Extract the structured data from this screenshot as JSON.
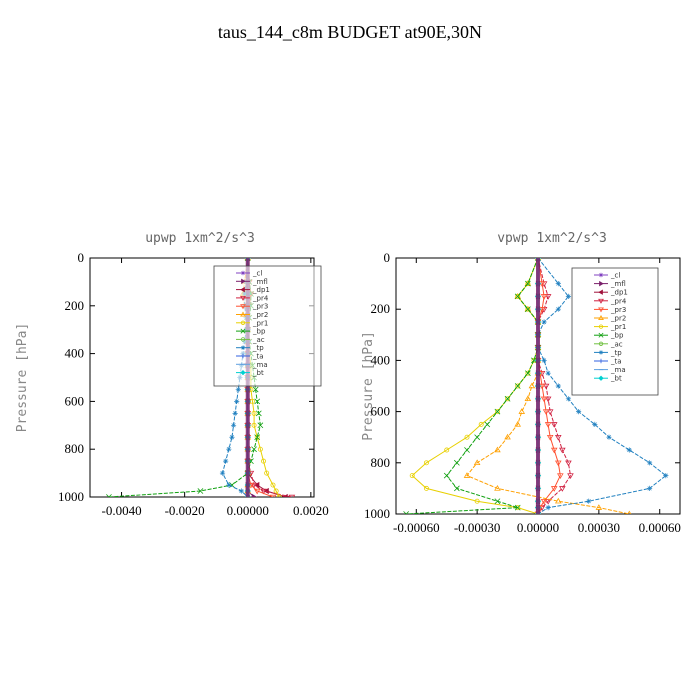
{
  "figure_title": "taus_144_c8m  BUDGET at90E,30N",
  "chart_data": [
    {
      "type": "line",
      "title": "upwp   1xm^2/s^3",
      "xlabel": "",
      "ylabel": "Pressure  [hPa]",
      "xlim": [
        -0.005,
        0.0021
      ],
      "ylim": [
        1000,
        0
      ],
      "xticks": [
        -0.004,
        -0.002,
        0.0,
        0.002
      ],
      "xtick_labels": [
        "-0.0040",
        "-0.0020",
        "0.00000",
        "0.0020"
      ],
      "yticks": [
        0,
        200,
        400,
        600,
        800,
        1000
      ],
      "ytick_labels": [
        "0",
        "200",
        "400",
        "600",
        "800",
        "1000"
      ],
      "legend_position": "top-right",
      "pressure": [
        0,
        100,
        150,
        200,
        250,
        300,
        350,
        400,
        450,
        500,
        550,
        600,
        650,
        700,
        750,
        800,
        850,
        900,
        950,
        975,
        1000
      ],
      "series": [
        {
          "name": "_cl",
          "color": "#8040c0",
          "values": [
            0,
            0,
            0,
            0,
            0,
            0,
            0,
            0,
            0,
            0,
            0,
            0,
            0,
            0,
            0,
            0,
            0,
            0,
            0,
            0,
            0
          ]
        },
        {
          "name": "_mfl",
          "color": "#7a1f6a",
          "values": [
            0,
            0,
            0,
            0,
            0,
            0,
            0,
            0,
            0,
            0,
            0,
            0,
            0,
            0,
            0,
            0,
            0,
            0,
            0,
            0,
            0.0002
          ]
        },
        {
          "name": "_dp1",
          "color": "#a0103a",
          "values": [
            0,
            0,
            0,
            0,
            0,
            0,
            0,
            0,
            0,
            0,
            0,
            0,
            0,
            0,
            0,
            0,
            0,
            0,
            0.0003,
            0.0006,
            0.0012
          ]
        },
        {
          "name": "_pr4",
          "color": "#d02040",
          "values": [
            0,
            5e-05,
            0.0001,
            5e-05,
            0,
            0,
            0,
            0,
            0,
            0,
            0,
            0,
            0,
            0,
            0,
            0,
            0,
            0.0001,
            0.0002,
            0.0005,
            0.0014
          ]
        },
        {
          "name": "_pr3",
          "color": "#ff5030",
          "values": [
            0,
            5e-05,
            0.0001,
            5e-05,
            0,
            0,
            0,
            0,
            0,
            0,
            0,
            0,
            0,
            0,
            0,
            0,
            0,
            0,
            0.0001,
            0.0003,
            0.0008
          ]
        },
        {
          "name": "_pr2",
          "color": "#ffa000",
          "values": [
            0,
            -0.0001,
            -0.00015,
            -0.0001,
            0,
            0,
            0,
            0,
            0,
            0,
            0,
            0,
            0,
            0,
            0,
            0,
            0,
            0,
            0,
            0,
            0
          ]
        },
        {
          "name": "_pr1",
          "color": "#e8d000",
          "values": [
            0,
            0,
            -0.0001,
            0,
            0,
            0,
            0,
            5e-05,
            0.0001,
            0.0001,
            0.0001,
            0.00015,
            0.0002,
            0.0002,
            0.0003,
            0.0004,
            0.0005,
            0.0006,
            0.0008,
            0.0009,
            0.001
          ]
        },
        {
          "name": "_bp",
          "color": "#10a010",
          "values": [
            0,
            5e-05,
            0.0001,
            0.0001,
            5e-05,
            0,
            5e-05,
            0.0001,
            0.00015,
            0.0002,
            0.00025,
            0.0003,
            0.00035,
            0.0004,
            0.0003,
            0.0002,
            0.0001,
            0,
            -0.0005,
            -0.0015,
            -0.0044
          ]
        },
        {
          "name": "_ac",
          "color": "#70c040",
          "values": [
            0,
            0,
            0,
            0,
            0,
            0,
            0,
            0,
            0,
            0,
            0,
            0,
            0,
            0,
            0,
            0,
            0,
            0,
            0,
            0,
            0
          ]
        },
        {
          "name": "_tp",
          "color": "#2080c0",
          "values": [
            0,
            -5e-05,
            -0.0001,
            -0.0001,
            -5e-05,
            -5e-05,
            -0.0001,
            -0.00015,
            -0.0002,
            -0.00025,
            -0.0003,
            -0.00035,
            -0.0004,
            -0.00045,
            -0.0005,
            -0.0006,
            -0.0007,
            -0.0008,
            -0.0006,
            -0.0002,
            0
          ]
        },
        {
          "name": "_ta",
          "color": "#3060e0",
          "values": [
            0,
            0,
            0,
            0,
            0,
            0,
            0,
            0,
            0,
            0,
            0,
            0,
            0,
            0,
            0,
            0,
            0,
            0,
            0,
            0,
            0
          ]
        },
        {
          "name": "_ma",
          "color": "#60a0e0",
          "values": [
            0,
            0,
            0,
            0,
            0,
            0,
            0,
            0,
            0,
            0,
            0,
            0,
            0,
            0,
            0,
            0,
            0,
            0,
            0,
            0,
            0
          ]
        },
        {
          "name": "_bt",
          "color": "#00d0d0",
          "values": [
            0,
            0,
            0,
            0,
            0,
            0,
            0,
            0,
            0,
            0,
            0,
            0,
            0,
            0,
            0,
            0,
            0,
            0,
            0,
            0,
            0
          ]
        }
      ]
    },
    {
      "type": "line",
      "title": "vpwp   1xm^2/s^3",
      "xlabel": "",
      "ylabel": "Pressure  [hPa]",
      "xlim": [
        -0.0007,
        0.0007
      ],
      "ylim": [
        1000,
        0
      ],
      "xticks": [
        -0.0006,
        -0.0003,
        0.0,
        0.0003,
        0.0006
      ],
      "xtick_labels": [
        "-0.00060",
        "-0.00030",
        "0.00000",
        "0.00030",
        "0.00060"
      ],
      "yticks": [
        0,
        200,
        400,
        600,
        800,
        1000
      ],
      "ytick_labels": [
        "0",
        "200",
        "400",
        "600",
        "800",
        "1000"
      ],
      "legend_position": "top-right",
      "pressure": [
        0,
        100,
        150,
        200,
        250,
        300,
        350,
        400,
        450,
        500,
        550,
        600,
        650,
        700,
        750,
        800,
        850,
        900,
        950,
        975,
        1000
      ],
      "series": [
        {
          "name": "_cl",
          "color": "#8040c0",
          "values": [
            0,
            0,
            0,
            0,
            0,
            0,
            0,
            0,
            0,
            0,
            0,
            0,
            0,
            0,
            0,
            0,
            0,
            0,
            0,
            0,
            0
          ]
        },
        {
          "name": "_mfl",
          "color": "#7a1f6a",
          "values": [
            0,
            0,
            0,
            0,
            0,
            0,
            0,
            0,
            0,
            0,
            0,
            0,
            0,
            0,
            0,
            0,
            0,
            0,
            0,
            0,
            0
          ]
        },
        {
          "name": "_dp1",
          "color": "#a0103a",
          "values": [
            0,
            0,
            0,
            0,
            0,
            0,
            0,
            0,
            0,
            0,
            0,
            0,
            0,
            0,
            0,
            0,
            0,
            0,
            0,
            0,
            0
          ]
        },
        {
          "name": "_pr4",
          "color": "#d02040",
          "values": [
            0,
            3e-05,
            5e-05,
            3e-05,
            0,
            0,
            0,
            0,
            2e-05,
            4e-05,
            5e-05,
            6e-05,
            8e-05,
            0.0001,
            0.00012,
            0.00015,
            0.00016,
            0.00012,
            5e-05,
            2e-05,
            0
          ]
        },
        {
          "name": "_pr3",
          "color": "#ff5030",
          "values": [
            0,
            2e-05,
            3e-05,
            2e-05,
            0,
            0,
            0,
            0,
            1e-05,
            2e-05,
            3e-05,
            4e-05,
            5e-05,
            6e-05,
            8e-05,
            0.0001,
            0.00011,
            8e-05,
            3e-05,
            1e-05,
            0
          ]
        },
        {
          "name": "_pr2",
          "color": "#ffa000",
          "values": [
            0,
            -5e-05,
            -0.0001,
            -5e-05,
            0,
            0,
            0,
            0,
            0,
            -3e-05,
            -5e-05,
            -8e-05,
            -0.0001,
            -0.00015,
            -0.0002,
            -0.0003,
            -0.00035,
            -0.0002,
            0.0001,
            0.0003,
            0.00045
          ]
        },
        {
          "name": "_pr1",
          "color": "#e8d000",
          "values": [
            0,
            -5e-05,
            -0.0001,
            -5e-05,
            0,
            0,
            0,
            -2e-05,
            -5e-05,
            -0.0001,
            -0.00015,
            -0.0002,
            -0.00028,
            -0.00035,
            -0.00045,
            -0.00055,
            -0.00062,
            -0.00055,
            -0.0003,
            -0.0001,
            0
          ]
        },
        {
          "name": "_bp",
          "color": "#10a010",
          "values": [
            0,
            -5e-05,
            -0.0001,
            -5e-05,
            0,
            0,
            0,
            -2e-05,
            -5e-05,
            -0.0001,
            -0.00015,
            -0.0002,
            -0.00025,
            -0.0003,
            -0.00035,
            -0.0004,
            -0.00045,
            -0.0004,
            -0.0002,
            -0.0001,
            -0.00065
          ]
        },
        {
          "name": "_ac",
          "color": "#70c040",
          "values": [
            0,
            0,
            0,
            0,
            0,
            0,
            0,
            0,
            0,
            0,
            0,
            0,
            0,
            0,
            0,
            0,
            0,
            0,
            0,
            0,
            0
          ]
        },
        {
          "name": "_tp",
          "color": "#2080c0",
          "values": [
            0,
            0.0001,
            0.00015,
            0.0001,
            3e-05,
            0,
            0,
            3e-05,
            5e-05,
            0.0001,
            0.00015,
            0.0002,
            0.00028,
            0.00035,
            0.00045,
            0.00055,
            0.00063,
            0.00055,
            0.00025,
            5e-05,
            0
          ]
        },
        {
          "name": "_ta",
          "color": "#3060e0",
          "values": [
            0,
            0,
            0,
            0,
            0,
            0,
            0,
            0,
            0,
            0,
            0,
            0,
            0,
            0,
            0,
            0,
            0,
            0,
            0,
            0,
            0
          ]
        },
        {
          "name": "_ma",
          "color": "#60a0e0",
          "values": [
            0,
            0,
            0,
            0,
            0,
            0,
            0,
            0,
            0,
            0,
            0,
            0,
            0,
            0,
            0,
            0,
            0,
            0,
            0,
            0,
            0
          ]
        },
        {
          "name": "_bt",
          "color": "#00d0d0",
          "values": [
            0,
            0,
            0,
            0,
            0,
            0,
            0,
            0,
            0,
            0,
            0,
            0,
            0,
            0,
            0,
            0,
            0,
            0,
            0,
            0,
            0
          ]
        }
      ]
    }
  ]
}
